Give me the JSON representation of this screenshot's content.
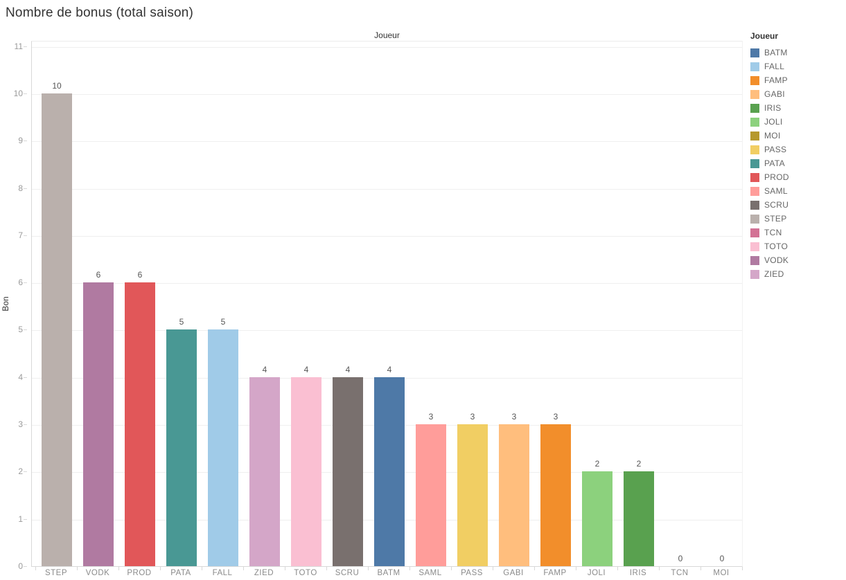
{
  "title": "Nombre de bonus (total saison)",
  "legend": {
    "title": "Joueur",
    "items": [
      {
        "label": "BATM",
        "color": "#4E79A7"
      },
      {
        "label": "FALL",
        "color": "#A0CBE8"
      },
      {
        "label": "FAMP",
        "color": "#F28E2B"
      },
      {
        "label": "GABI",
        "color": "#FFBE7D"
      },
      {
        "label": "IRIS",
        "color": "#59A14F"
      },
      {
        "label": "JOLI",
        "color": "#8CD17D"
      },
      {
        "label": "MOI",
        "color": "#B6992D"
      },
      {
        "label": "PASS",
        "color": "#F1CE63"
      },
      {
        "label": "PATA",
        "color": "#499894"
      },
      {
        "label": "PROD",
        "color": "#E15759"
      },
      {
        "label": "SAML",
        "color": "#FF9D9A"
      },
      {
        "label": "SCRU",
        "color": "#79706E"
      },
      {
        "label": "STEP",
        "color": "#BAB0AC"
      },
      {
        "label": "TCN",
        "color": "#D37295"
      },
      {
        "label": "TOTO",
        "color": "#FABFD2"
      },
      {
        "label": "VODK",
        "color": "#B07AA1"
      },
      {
        "label": "ZIED",
        "color": "#D4A6C8"
      }
    ]
  },
  "chart_data": {
    "type": "bar",
    "title": "Nombre de bonus (total saison)",
    "xlabel": "Joueur",
    "ylabel": "Bon",
    "categories": [
      "STEP",
      "VODK",
      "PROD",
      "PATA",
      "FALL",
      "ZIED",
      "TOTO",
      "SCRU",
      "BATM",
      "SAML",
      "PASS",
      "GABI",
      "FAMP",
      "JOLI",
      "IRIS",
      "TCN",
      "MOI"
    ],
    "values": [
      10,
      6,
      6,
      5,
      5,
      4,
      4,
      4,
      4,
      3,
      3,
      3,
      3,
      2,
      2,
      0,
      0
    ],
    "colors": [
      "#BAB0AC",
      "#B07AA1",
      "#E15759",
      "#499894",
      "#A0CBE8",
      "#D4A6C8",
      "#FABFD2",
      "#79706E",
      "#4E79A7",
      "#FF9D9A",
      "#F1CE63",
      "#FFBE7D",
      "#F28E2B",
      "#8CD17D",
      "#59A14F",
      "#D37295",
      "#B6992D"
    ],
    "bar_labels": [
      10,
      6,
      6,
      5,
      5,
      4,
      4,
      4,
      4,
      3,
      3,
      3,
      3,
      2,
      2,
      0,
      0
    ],
    "ylim": [
      0,
      11.1
    ],
    "yticks": [
      0,
      1,
      2,
      3,
      4,
      5,
      6,
      7,
      8,
      9,
      10,
      11
    ],
    "grid": true,
    "legend_position": "right",
    "legend_title": "Joueur"
  }
}
